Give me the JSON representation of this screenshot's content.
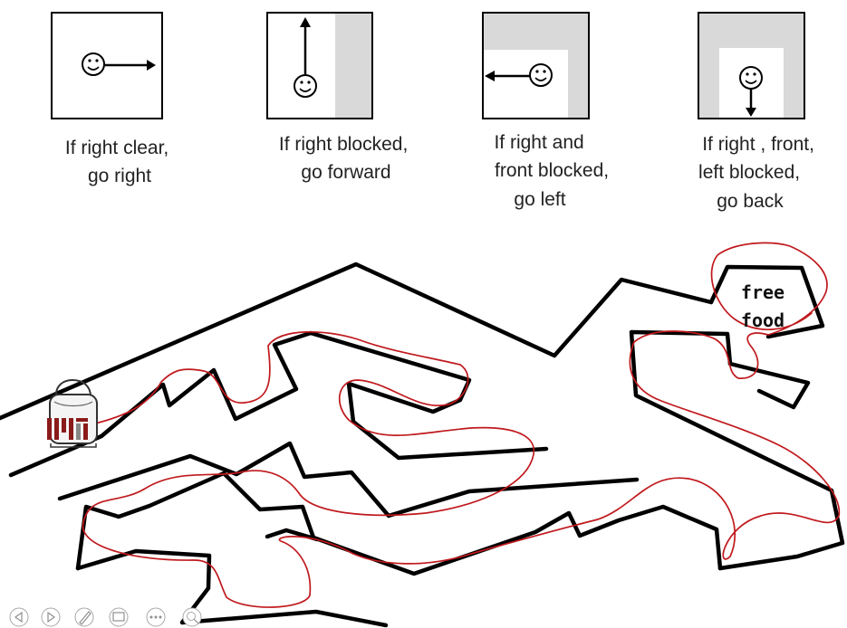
{
  "rules": [
    {
      "lines": [
        "If right clear,",
        "go right"
      ],
      "icon": "smiley-face-icon",
      "arrow": "arrow-right-icon"
    },
    {
      "lines": [
        "If right blocked,",
        "go forward"
      ],
      "icon": "smiley-face-icon",
      "arrow": "arrow-up-icon"
    },
    {
      "lines": [
        "If right and",
        "front blocked,",
        "go left"
      ],
      "icon": "smiley-face-icon",
      "arrow": "arrow-left-icon"
    },
    {
      "lines": [
        "If right , front,",
        "left blocked,",
        "go back"
      ],
      "icon": "smiley-face-icon",
      "arrow": "arrow-down-icon"
    }
  ],
  "maze": {
    "goal_lines": [
      "free",
      "food"
    ],
    "start_icon": "backpack-icon",
    "start_logo": "MIT",
    "route_color": "#c0191d",
    "wall_color": "#000000",
    "blocked_color": "#d9d9d9"
  },
  "controls": [
    "previous-icon",
    "next-icon",
    "pen-icon",
    "slide-overview-icon",
    "more-options-icon",
    "zoom-icon"
  ]
}
